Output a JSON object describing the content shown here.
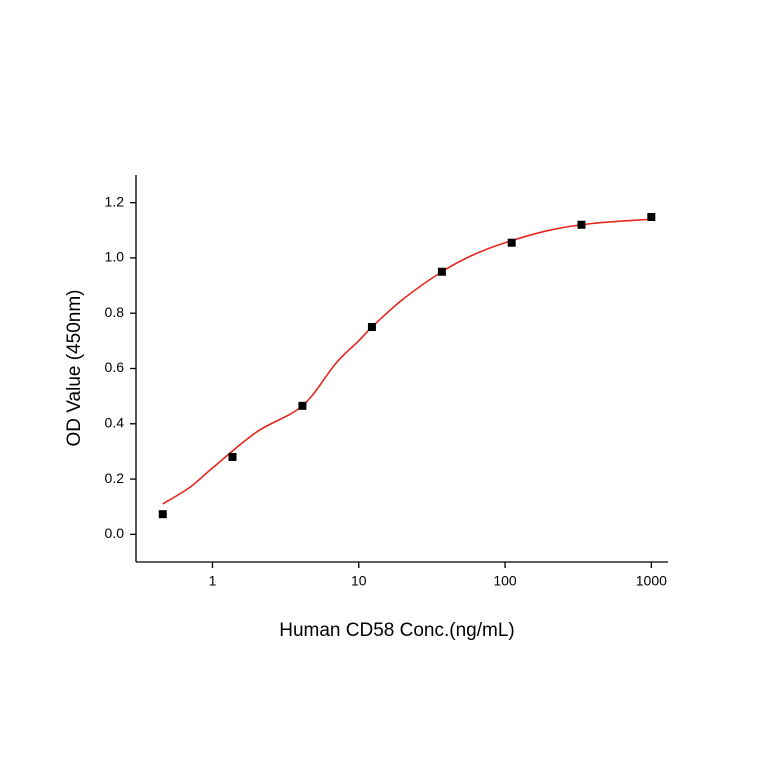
{
  "chart_data": {
    "type": "scatter",
    "xlabel": "Human CD58 Conc.(ng/mL)",
    "ylabel": "OD Value (450nm)",
    "xscale": "log",
    "xlim": [
      0.3,
      1300
    ],
    "xticks": [
      1,
      10,
      100,
      1000
    ],
    "ylim": [
      -0.1,
      1.3
    ],
    "yticks": [
      {
        "value": 0,
        "label": "0.0"
      },
      0.2,
      0.4,
      0.6,
      0.8,
      {
        "value": 1,
        "label": "1.0"
      },
      1.2
    ],
    "series": [
      {
        "style": "markers",
        "color": "#000000",
        "x": [
          0.457,
          1.37,
          4.12,
          12.3,
          37,
          111,
          333,
          1000
        ],
        "values": [
          0.073,
          0.28,
          0.465,
          0.75,
          0.95,
          1.055,
          1.12,
          1.148
        ]
      },
      {
        "style": "line",
        "color": "#e8251f",
        "x": [
          0.457,
          0.7,
          1,
          2,
          4.12,
          7,
          10,
          12.3,
          20,
          37,
          60,
          100,
          200,
          400,
          1000
        ],
        "values": [
          0.11,
          0.17,
          0.24,
          0.37,
          0.465,
          0.62,
          0.7,
          0.75,
          0.85,
          0.95,
          1.01,
          1.055,
          1.1,
          1.125,
          1.14
        ]
      }
    ]
  }
}
